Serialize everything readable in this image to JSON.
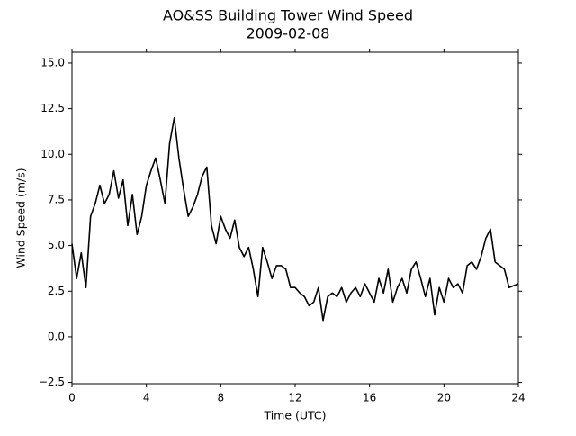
{
  "chart_data": {
    "type": "line",
    "title": "AO&SS Building Tower Wind Speed",
    "subtitle": "2009-02-08",
    "x_label": "Time (UTC)",
    "y_label": "Wind Speed (m/s)",
    "color": "#000000",
    "x": [
      0,
      0.25,
      0.5,
      0.75,
      1,
      1.25,
      1.5,
      1.75,
      2,
      2.25,
      2.5,
      2.75,
      3,
      3.25,
      3.5,
      3.75,
      4,
      4.25,
      4.5,
      4.75,
      5,
      5.25,
      5.5,
      5.75,
      6,
      6.25,
      6.5,
      6.75,
      7,
      7.25,
      7.5,
      7.75,
      8,
      8.25,
      8.5,
      8.75,
      9,
      9.25,
      9.5,
      9.75,
      10,
      10.25,
      10.5,
      10.75,
      11,
      11.25,
      11.5,
      11.75,
      12,
      12.25,
      12.5,
      12.75,
      13,
      13.25,
      13.5,
      13.75,
      14,
      14.25,
      14.5,
      14.75,
      15,
      15.25,
      15.5,
      15.75,
      16,
      16.25,
      16.5,
      16.75,
      17,
      17.25,
      17.5,
      17.75,
      18,
      18.25,
      18.5,
      18.75,
      19,
      19.25,
      19.5,
      19.75,
      20,
      20.25,
      20.5,
      20.75,
      21,
      21.25,
      21.5,
      21.75,
      22,
      22.25,
      22.5,
      22.75,
      23,
      23.25,
      23.5,
      23.75,
      24
    ],
    "values": [
      5.1,
      3.2,
      4.6,
      2.7,
      6.6,
      7.3,
      8.3,
      7.3,
      7.8,
      9.1,
      7.6,
      8.6,
      6.1,
      7.8,
      5.6,
      6.6,
      8.3,
      9.1,
      9.8,
      8.6,
      7.3,
      10.6,
      12.0,
      9.8,
      8.1,
      6.6,
      7.1,
      7.8,
      8.8,
      9.3,
      6.1,
      5.1,
      6.6,
      5.9,
      5.4,
      6.4,
      4.9,
      4.4,
      4.9,
      3.7,
      2.2,
      4.9,
      4.1,
      3.2,
      3.9,
      3.9,
      3.7,
      2.7,
      2.7,
      2.4,
      2.2,
      1.7,
      1.9,
      2.7,
      0.9,
      2.2,
      2.4,
      2.2,
      2.7,
      1.9,
      2.4,
      2.7,
      2.2,
      2.9,
      2.4,
      1.9,
      3.2,
      2.4,
      3.7,
      1.9,
      2.7,
      3.2,
      2.4,
      3.7,
      4.1,
      3.2,
      2.2,
      3.2,
      1.2,
      2.7,
      1.9,
      3.2,
      2.7,
      2.9,
      2.4,
      3.9,
      4.1,
      3.7,
      4.4,
      5.4,
      5.9,
      4.1,
      3.9,
      3.7,
      2.7,
      2.8,
      2.9
    ],
    "xlim": [
      0,
      24
    ],
    "xticks": [
      0,
      4,
      8,
      12,
      16,
      20,
      24
    ],
    "ylim": [
      -2.57,
      15.59
    ],
    "yticks": [
      {
        "value": -2.5,
        "label": "−2.5"
      },
      {
        "value": 0,
        "label": "0.0"
      },
      {
        "value": 2.5,
        "label": "2.5"
      },
      {
        "value": 5,
        "label": "5.0"
      },
      {
        "value": 7.5,
        "label": "7.5"
      },
      {
        "value": 10,
        "label": "10.0"
      },
      {
        "value": 12.5,
        "label": "12.5"
      },
      {
        "value": 15,
        "label": "15.0"
      }
    ],
    "grid": false
  }
}
